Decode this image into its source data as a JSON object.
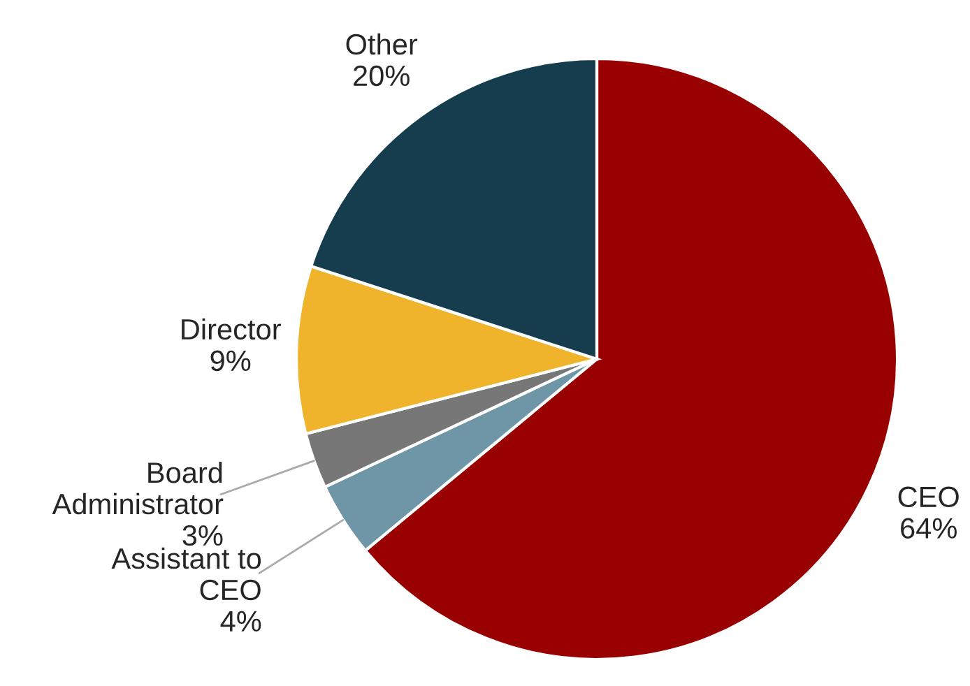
{
  "chart_data": {
    "type": "pie",
    "categories": [
      "CEO",
      "Assistant to\nCEO",
      "Board\nAdministrator",
      "Director",
      "Other"
    ],
    "values": [
      64,
      4,
      3,
      9,
      20
    ],
    "value_labels": [
      "64%",
      "4%",
      "3%",
      "9%",
      "20%"
    ],
    "colors": [
      "#990000",
      "#6f96a6",
      "#777777",
      "#efb42c",
      "#163d4d"
    ]
  }
}
